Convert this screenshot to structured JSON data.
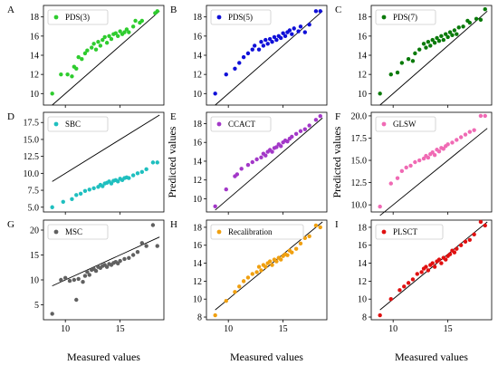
{
  "figure": {
    "xlabel": "Measured values",
    "ylabel": "Predicted values"
  },
  "chart_data": [
    {
      "letter": "A",
      "type": "scatter",
      "series_name": "PDS(3)",
      "color": "#2ecc2e",
      "xlabel": "",
      "ylabel": "",
      "xlim": [
        8,
        19
      ],
      "ylim": [
        8.8,
        19.2
      ],
      "yticks": [
        10,
        12,
        14,
        16,
        18
      ],
      "identity_line": [
        [
          8.8,
          8.8
        ],
        [
          18.6,
          18.6
        ]
      ],
      "points": [
        [
          8.8,
          10.0
        ],
        [
          9.6,
          12.0
        ],
        [
          10.2,
          12.0
        ],
        [
          10.6,
          11.8
        ],
        [
          10.8,
          12.8
        ],
        [
          11.0,
          12.6
        ],
        [
          11.2,
          13.8
        ],
        [
          11.5,
          13.6
        ],
        [
          11.8,
          14.2
        ],
        [
          12.0,
          14.5
        ],
        [
          12.4,
          14.8
        ],
        [
          12.6,
          15.2
        ],
        [
          12.8,
          14.6
        ],
        [
          13.0,
          15.4
        ],
        [
          13.2,
          15.0
        ],
        [
          13.4,
          15.6
        ],
        [
          13.6,
          15.9
        ],
        [
          13.8,
          15.3
        ],
        [
          14.0,
          16.0
        ],
        [
          14.2,
          15.7
        ],
        [
          14.4,
          16.2
        ],
        [
          14.6,
          16.3
        ],
        [
          14.8,
          16.0
        ],
        [
          15.0,
          16.5
        ],
        [
          15.2,
          16.2
        ],
        [
          15.4,
          16.4
        ],
        [
          15.6,
          16.7
        ],
        [
          15.8,
          16.4
        ],
        [
          16.2,
          17.0
        ],
        [
          16.4,
          17.6
        ],
        [
          16.8,
          17.4
        ],
        [
          17.0,
          17.6
        ],
        [
          18.2,
          18.4
        ],
        [
          18.4,
          18.6
        ]
      ]
    },
    {
      "letter": "B",
      "type": "scatter",
      "series_name": "PDS(5)",
      "color": "#1010d8",
      "xlabel": "",
      "ylabel": "",
      "xlim": [
        8,
        19
      ],
      "ylim": [
        8.8,
        19.2
      ],
      "yticks": [
        10,
        12,
        14,
        16,
        18
      ],
      "identity_line": [
        [
          8.8,
          8.8
        ],
        [
          18.6,
          18.6
        ]
      ],
      "points": [
        [
          8.8,
          10.0
        ],
        [
          9.8,
          12.0
        ],
        [
          10.6,
          12.6
        ],
        [
          11.0,
          13.2
        ],
        [
          11.4,
          13.8
        ],
        [
          11.8,
          14.2
        ],
        [
          12.2,
          14.6
        ],
        [
          12.4,
          15.0
        ],
        [
          12.8,
          14.6
        ],
        [
          13.0,
          15.4
        ],
        [
          13.2,
          15.0
        ],
        [
          13.4,
          15.6
        ],
        [
          13.6,
          15.2
        ],
        [
          13.8,
          15.7
        ],
        [
          14.0,
          15.4
        ],
        [
          14.2,
          15.9
        ],
        [
          14.4,
          15.6
        ],
        [
          14.6,
          16.0
        ],
        [
          14.8,
          15.8
        ],
        [
          15.0,
          16.3
        ],
        [
          15.2,
          16.0
        ],
        [
          15.4,
          16.4
        ],
        [
          15.6,
          16.6
        ],
        [
          15.8,
          16.2
        ],
        [
          16.0,
          16.8
        ],
        [
          16.4,
          16.5
        ],
        [
          16.6,
          17.0
        ],
        [
          17.0,
          16.4
        ],
        [
          17.4,
          17.2
        ],
        [
          18.0,
          18.6
        ],
        [
          18.4,
          18.6
        ]
      ]
    },
    {
      "letter": "C",
      "type": "scatter",
      "series_name": "PDS(7)",
      "color": "#0a7a0a",
      "xlabel": "",
      "ylabel": "",
      "xlim": [
        8,
        19
      ],
      "ylim": [
        8.8,
        19.2
      ],
      "yticks": [
        10,
        12,
        14,
        16,
        18
      ],
      "identity_line": [
        [
          8.8,
          8.8
        ],
        [
          18.6,
          18.6
        ]
      ],
      "points": [
        [
          8.8,
          10.0
        ],
        [
          9.8,
          12.0
        ],
        [
          10.4,
          12.2
        ],
        [
          10.8,
          13.2
        ],
        [
          11.4,
          13.6
        ],
        [
          11.8,
          13.4
        ],
        [
          12.0,
          14.2
        ],
        [
          12.4,
          14.6
        ],
        [
          12.8,
          15.2
        ],
        [
          13.0,
          14.8
        ],
        [
          13.2,
          15.4
        ],
        [
          13.4,
          15.0
        ],
        [
          13.6,
          15.6
        ],
        [
          13.8,
          15.3
        ],
        [
          14.0,
          15.8
        ],
        [
          14.2,
          15.5
        ],
        [
          14.4,
          16.0
        ],
        [
          14.6,
          15.6
        ],
        [
          14.8,
          16.2
        ],
        [
          15.0,
          15.9
        ],
        [
          15.2,
          16.4
        ],
        [
          15.4,
          16.1
        ],
        [
          15.6,
          16.6
        ],
        [
          15.8,
          16.2
        ],
        [
          16.0,
          16.9
        ],
        [
          16.4,
          17.0
        ],
        [
          16.8,
          17.6
        ],
        [
          17.0,
          17.4
        ],
        [
          17.6,
          17.8
        ],
        [
          18.0,
          17.7
        ],
        [
          18.4,
          18.8
        ]
      ]
    },
    {
      "letter": "D",
      "type": "scatter",
      "series_name": "SBC",
      "color": "#1fbfbf",
      "xlabel": "",
      "ylabel": "",
      "xlim": [
        8,
        19
      ],
      "ylim": [
        4.3,
        19.0
      ],
      "yticks": [
        5.0,
        7.5,
        10.0,
        12.5,
        15.0,
        17.5
      ],
      "identity_line": [
        [
          8.8,
          8.8
        ],
        [
          18.6,
          18.6
        ]
      ],
      "points": [
        [
          8.8,
          5.0
        ],
        [
          9.8,
          5.8
        ],
        [
          10.6,
          6.2
        ],
        [
          11.0,
          6.8
        ],
        [
          11.4,
          7.0
        ],
        [
          11.8,
          7.4
        ],
        [
          12.2,
          7.6
        ],
        [
          12.6,
          7.8
        ],
        [
          13.0,
          8.0
        ],
        [
          13.2,
          8.3
        ],
        [
          13.4,
          8.1
        ],
        [
          13.6,
          8.5
        ],
        [
          13.8,
          8.6
        ],
        [
          14.0,
          8.8
        ],
        [
          14.2,
          8.5
        ],
        [
          14.4,
          8.9
        ],
        [
          14.6,
          9.0
        ],
        [
          14.8,
          8.8
        ],
        [
          15.0,
          9.2
        ],
        [
          15.2,
          9.0
        ],
        [
          15.4,
          9.3
        ],
        [
          15.6,
          9.4
        ],
        [
          15.8,
          9.3
        ],
        [
          16.2,
          9.7
        ],
        [
          16.6,
          10.0
        ],
        [
          17.0,
          10.2
        ],
        [
          17.4,
          10.6
        ],
        [
          18.0,
          11.6
        ],
        [
          18.4,
          11.6
        ]
      ]
    },
    {
      "letter": "E",
      "type": "scatter",
      "series_name": "CCACT",
      "color": "#a338c8",
      "xlabel": "",
      "ylabel": "Predicted values",
      "xlim": [
        8,
        19
      ],
      "ylim": [
        8.6,
        19.2
      ],
      "yticks": [
        10,
        12,
        14,
        16,
        18
      ],
      "identity_line": [
        [
          8.8,
          8.8
        ],
        [
          18.6,
          18.6
        ]
      ],
      "points": [
        [
          8.8,
          9.2
        ],
        [
          9.8,
          11.0
        ],
        [
          10.6,
          12.4
        ],
        [
          10.8,
          12.6
        ],
        [
          11.2,
          13.2
        ],
        [
          11.8,
          13.6
        ],
        [
          12.2,
          13.9
        ],
        [
          12.6,
          14.2
        ],
        [
          13.0,
          14.4
        ],
        [
          13.2,
          14.8
        ],
        [
          13.4,
          14.6
        ],
        [
          13.6,
          15.0
        ],
        [
          13.8,
          15.2
        ],
        [
          14.0,
          15.0
        ],
        [
          14.2,
          15.4
        ],
        [
          14.4,
          15.5
        ],
        [
          14.6,
          15.8
        ],
        [
          14.8,
          15.6
        ],
        [
          15.0,
          16.0
        ],
        [
          15.2,
          16.2
        ],
        [
          15.4,
          16.1
        ],
        [
          15.6,
          16.4
        ],
        [
          15.8,
          16.6
        ],
        [
          16.2,
          16.9
        ],
        [
          16.6,
          17.2
        ],
        [
          17.0,
          17.4
        ],
        [
          17.4,
          17.8
        ],
        [
          18.0,
          18.4
        ],
        [
          18.4,
          18.8
        ]
      ]
    },
    {
      "letter": "F",
      "type": "scatter",
      "series_name": "GLSW",
      "color": "#f06ab4",
      "xlabel": "",
      "ylabel": "Predicted values",
      "xlim": [
        8,
        19
      ],
      "ylim": [
        9.2,
        20.4
      ],
      "yticks": [
        10.0,
        12.5,
        15.0,
        17.5,
        20.0
      ],
      "identity_line": [
        [
          8.8,
          8.8
        ],
        [
          18.6,
          18.6
        ]
      ],
      "points": [
        [
          8.8,
          9.8
        ],
        [
          9.8,
          12.4
        ],
        [
          10.4,
          13.0
        ],
        [
          10.8,
          13.8
        ],
        [
          11.2,
          14.2
        ],
        [
          11.6,
          14.4
        ],
        [
          12.0,
          14.8
        ],
        [
          12.4,
          15.0
        ],
        [
          12.8,
          15.2
        ],
        [
          13.0,
          15.5
        ],
        [
          13.2,
          15.3
        ],
        [
          13.4,
          15.7
        ],
        [
          13.6,
          15.9
        ],
        [
          13.8,
          15.6
        ],
        [
          14.0,
          16.2
        ],
        [
          14.2,
          16.0
        ],
        [
          14.4,
          16.4
        ],
        [
          14.6,
          16.3
        ],
        [
          14.8,
          16.6
        ],
        [
          15.0,
          16.8
        ],
        [
          15.4,
          17.0
        ],
        [
          15.8,
          17.3
        ],
        [
          16.2,
          17.6
        ],
        [
          16.6,
          17.9
        ],
        [
          17.0,
          18.2
        ],
        [
          17.4,
          18.4
        ],
        [
          18.0,
          20.0
        ],
        [
          18.4,
          20.0
        ]
      ]
    },
    {
      "letter": "G",
      "type": "scatter",
      "series_name": "MSC",
      "color": "#606060",
      "xlabel": "",
      "ylabel": "",
      "xlim": [
        8,
        19
      ],
      "ylim": [
        2.0,
        22.0
      ],
      "yticks": [
        5,
        10,
        15,
        20
      ],
      "identity_line": [
        [
          8.8,
          8.8
        ],
        [
          18.6,
          18.6
        ]
      ],
      "points": [
        [
          8.8,
          3.2
        ],
        [
          9.6,
          10.0
        ],
        [
          10.0,
          10.4
        ],
        [
          10.4,
          9.8
        ],
        [
          10.8,
          10.0
        ],
        [
          11.0,
          6.0
        ],
        [
          11.2,
          10.2
        ],
        [
          11.6,
          9.6
        ],
        [
          11.8,
          10.8
        ],
        [
          12.0,
          11.6
        ],
        [
          12.2,
          11.0
        ],
        [
          12.4,
          12.0
        ],
        [
          12.6,
          12.2
        ],
        [
          12.8,
          11.8
        ],
        [
          13.0,
          12.6
        ],
        [
          13.2,
          12.4
        ],
        [
          13.4,
          12.8
        ],
        [
          13.6,
          13.0
        ],
        [
          13.8,
          12.6
        ],
        [
          14.0,
          13.2
        ],
        [
          14.2,
          13.0
        ],
        [
          14.4,
          13.4
        ],
        [
          14.6,
          13.6
        ],
        [
          14.8,
          13.3
        ],
        [
          15.0,
          13.8
        ],
        [
          15.4,
          14.2
        ],
        [
          15.8,
          14.4
        ],
        [
          16.2,
          15.0
        ],
        [
          16.6,
          15.6
        ],
        [
          17.0,
          17.4
        ],
        [
          17.4,
          16.8
        ],
        [
          18.0,
          21.0
        ],
        [
          18.4,
          16.8
        ]
      ]
    },
    {
      "letter": "H",
      "type": "scatter",
      "series_name": "Recalibration",
      "color": "#f0a010",
      "xlabel": "Measured values",
      "ylabel": "",
      "xlim": [
        8,
        19
      ],
      "ylim": [
        7.7,
        18.8
      ],
      "yticks": [
        8,
        10,
        12,
        14,
        16,
        18
      ],
      "identity_line": [
        [
          8.8,
          8.8
        ],
        [
          18.6,
          18.6
        ]
      ],
      "points": [
        [
          8.8,
          8.2
        ],
        [
          9.8,
          9.8
        ],
        [
          10.6,
          10.8
        ],
        [
          11.0,
          11.4
        ],
        [
          11.4,
          12.0
        ],
        [
          11.8,
          12.4
        ],
        [
          12.2,
          12.8
        ],
        [
          12.6,
          13.0
        ],
        [
          12.8,
          13.6
        ],
        [
          13.0,
          13.2
        ],
        [
          13.2,
          13.8
        ],
        [
          13.4,
          13.6
        ],
        [
          13.6,
          14.0
        ],
        [
          13.8,
          14.2
        ],
        [
          14.0,
          13.8
        ],
        [
          14.2,
          14.4
        ],
        [
          14.4,
          14.2
        ],
        [
          14.6,
          14.6
        ],
        [
          14.8,
          14.4
        ],
        [
          15.0,
          14.8
        ],
        [
          15.2,
          15.0
        ],
        [
          15.4,
          14.9
        ],
        [
          15.6,
          15.4
        ],
        [
          15.8,
          15.2
        ],
        [
          16.2,
          15.6
        ],
        [
          16.6,
          16.2
        ],
        [
          17.0,
          16.8
        ],
        [
          17.4,
          17.0
        ],
        [
          18.0,
          18.2
        ],
        [
          18.4,
          18.0
        ]
      ]
    },
    {
      "letter": "I",
      "type": "scatter",
      "series_name": "PLSCT",
      "color": "#e01010",
      "xlabel": "",
      "ylabel": "",
      "xlim": [
        8,
        19
      ],
      "ylim": [
        7.7,
        18.8
      ],
      "yticks": [
        8,
        10,
        12,
        14,
        16,
        18
      ],
      "identity_line": [
        [
          8.8,
          8.8
        ],
        [
          18.6,
          18.6
        ]
      ],
      "points": [
        [
          8.8,
          8.2
        ],
        [
          9.8,
          10.0
        ],
        [
          10.6,
          11.0
        ],
        [
          11.0,
          11.4
        ],
        [
          11.4,
          11.8
        ],
        [
          11.8,
          12.2
        ],
        [
          12.2,
          12.8
        ],
        [
          12.6,
          13.0
        ],
        [
          12.8,
          13.4
        ],
        [
          13.0,
          13.6
        ],
        [
          13.2,
          13.2
        ],
        [
          13.4,
          13.8
        ],
        [
          13.6,
          14.0
        ],
        [
          13.8,
          13.6
        ],
        [
          14.0,
          14.2
        ],
        [
          14.2,
          14.4
        ],
        [
          14.4,
          14.0
        ],
        [
          14.6,
          14.6
        ],
        [
          14.8,
          14.4
        ],
        [
          15.0,
          14.8
        ],
        [
          15.2,
          15.0
        ],
        [
          15.4,
          15.4
        ],
        [
          15.6,
          15.2
        ],
        [
          15.8,
          15.6
        ],
        [
          16.2,
          16.0
        ],
        [
          16.6,
          16.4
        ],
        [
          17.0,
          16.6
        ],
        [
          17.4,
          17.2
        ],
        [
          18.0,
          18.6
        ],
        [
          18.4,
          18.2
        ]
      ]
    }
  ],
  "shared_x_ticks": [
    10,
    15
  ]
}
